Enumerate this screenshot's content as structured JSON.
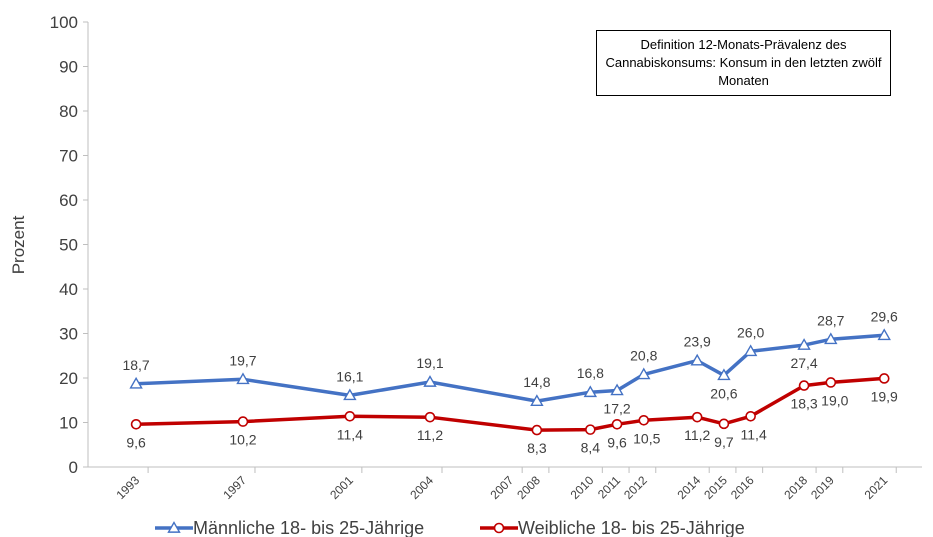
{
  "chart_data": {
    "type": "line",
    "title": "",
    "ylabel": "Prozent",
    "xlabel": "",
    "ylim": [
      0,
      100
    ],
    "yticks": [
      0,
      10,
      20,
      30,
      40,
      50,
      60,
      70,
      80,
      90,
      100
    ],
    "x": [
      "1993",
      "1997",
      "2001",
      "2004",
      "2007",
      "2008",
      "2010",
      "2011",
      "2012",
      "2014",
      "2015",
      "2016",
      "2018",
      "2019",
      "2021"
    ],
    "annotation": "Definition 12-Monats-Prävalenz des Cannabiskonsums: Konsum in den letzten zwölf Monaten",
    "legend_position": "bottom",
    "grid": false,
    "series": [
      {
        "name": "Männliche 18- bis 25-Jährige",
        "color": "#4472C4",
        "marker": "triangle",
        "x": [
          "1993",
          "1997",
          "2001",
          "2004",
          "2008",
          "2010",
          "2011",
          "2012",
          "2014",
          "2015",
          "2016",
          "2018",
          "2019",
          "2021"
        ],
        "values": [
          18.7,
          19.7,
          16.1,
          19.1,
          14.8,
          16.8,
          17.2,
          20.8,
          23.9,
          20.6,
          26.0,
          27.4,
          28.7,
          29.6
        ],
        "labels": [
          "18,7",
          "19,7",
          "16,1",
          "19,1",
          "14,8",
          "16,8",
          "17,2",
          "20,8",
          "23,9",
          "20,6",
          "26,0",
          "27,4",
          "28,7",
          "29,6"
        ]
      },
      {
        "name": "Weibliche 18- bis 25-Jährige",
        "color": "#C00000",
        "marker": "circle",
        "x": [
          "1993",
          "1997",
          "2001",
          "2004",
          "2008",
          "2010",
          "2011",
          "2012",
          "2014",
          "2015",
          "2016",
          "2018",
          "2019",
          "2021"
        ],
        "values": [
          9.6,
          10.2,
          11.4,
          11.2,
          8.3,
          8.4,
          9.6,
          10.5,
          11.2,
          9.7,
          11.4,
          18.3,
          19.0,
          19.9
        ],
        "labels": [
          "9,6",
          "10,2",
          "11,4",
          "11,2",
          "8,3",
          "8,4",
          "9,6",
          "10,5",
          "11,2",
          "9,7",
          "11,4",
          "18,3",
          "19,0",
          "19,9"
        ]
      }
    ]
  }
}
